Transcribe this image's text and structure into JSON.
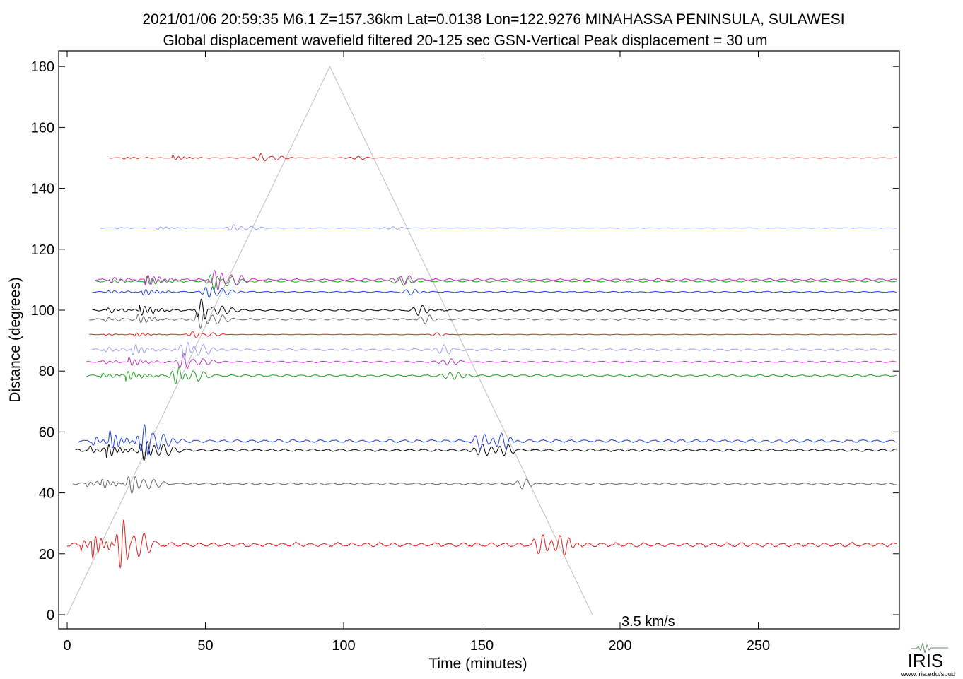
{
  "chart_data": {
    "type": "line",
    "title": "2021/01/06  20:59:35  M6.1  Z=157.36km  Lat=0.0138 Lon=122.9276  MINAHASSA PENINSULA, SULAWESI",
    "subtitle": "Global displacement wavefield     filtered 20-125 sec    GSN-Vertical    Peak displacement =  30 um",
    "xlabel": "Time (minutes)",
    "ylabel": "Distance (degrees)",
    "xlim": [
      -3,
      300
    ],
    "ylim": [
      -5,
      185
    ],
    "xticks": [
      0,
      50,
      100,
      150,
      200,
      250
    ],
    "yticks": [
      0,
      20,
      40,
      60,
      80,
      100,
      120,
      140,
      160,
      180
    ],
    "grid": false,
    "legend": "none",
    "reference_line": {
      "label": "3.5 km/s",
      "label_color": "#7f8a88",
      "color": "#c8c8c8",
      "x": [
        0,
        95,
        190
      ],
      "y": [
        0,
        180,
        0
      ]
    },
    "series": [
      {
        "distance": 23.0,
        "color": "#e02020",
        "p_arrival": 5,
        "s_arrival": 9,
        "surface_arrival": 20,
        "amplitude": 3.5,
        "late_x": [
          172,
          180
        ]
      },
      {
        "distance": 43.0,
        "color": "#666666",
        "p_arrival": 7,
        "s_arrival": 12,
        "surface_arrival": 23,
        "amplitude": 1.6,
        "late_x": [
          165
        ]
      },
      {
        "distance": 54.0,
        "color": "#000000",
        "p_arrival": 8,
        "s_arrival": 14,
        "surface_arrival": 28,
        "amplitude": 2.0,
        "late_x": [
          150,
          158
        ]
      },
      {
        "distance": 57.0,
        "color": "#2040e0",
        "p_arrival": 9,
        "s_arrival": 15,
        "surface_arrival": 28,
        "amplitude": 2.4,
        "late_x": [
          150,
          158
        ]
      },
      {
        "distance": 78.5,
        "color": "#20a020",
        "p_arrival": 12,
        "s_arrival": 21,
        "surface_arrival": 40,
        "amplitude": 1.6,
        "late_x": [
          140
        ]
      },
      {
        "distance": 83.0,
        "color": "#c030c0",
        "p_arrival": 12,
        "s_arrival": 22,
        "surface_arrival": 42,
        "amplitude": 1.2,
        "late_x": [
          138
        ]
      },
      {
        "distance": 87.0,
        "color": "#9aa0f0",
        "p_arrival": 13,
        "s_arrival": 23,
        "surface_arrival": 43,
        "amplitude": 1.6,
        "late_x": [
          136
        ]
      },
      {
        "distance": 92.0,
        "color": "#e02020",
        "p_arrival": 13,
        "s_arrival": 24,
        "surface_arrival": 46,
        "amplitude": 0.5,
        "late_x": [
          134
        ]
      },
      {
        "distance": 97.0,
        "color": "#666666",
        "p_arrival": 13,
        "s_arrival": 25,
        "surface_arrival": 48,
        "amplitude": 1.4,
        "late_x": [
          130
        ]
      },
      {
        "distance": 100.0,
        "color": "#000000",
        "p_arrival": 14,
        "s_arrival": 26,
        "surface_arrival": 49,
        "amplitude": 1.6,
        "late_x": [
          128
        ]
      },
      {
        "distance": 106.0,
        "color": "#2040e0",
        "p_arrival": 14,
        "s_arrival": 27,
        "surface_arrival": 51,
        "amplitude": 1.0,
        "late_x": [
          125
        ]
      },
      {
        "distance": 109.5,
        "color": "#20a020",
        "p_arrival": 15,
        "s_arrival": 28,
        "surface_arrival": 53,
        "amplitude": 1.4,
        "late_x": [
          122
        ]
      },
      {
        "distance": 110.0,
        "color": "#c030c0",
        "p_arrival": 15,
        "s_arrival": 28,
        "surface_arrival": 54,
        "amplitude": 1.6,
        "late_x": [
          122
        ]
      },
      {
        "distance": 127.0,
        "color": "#9aa0f0",
        "p_arrival": 17,
        "s_arrival": 32,
        "surface_arrival": 60,
        "amplitude": 0.5,
        "late_x": [
          118
        ]
      },
      {
        "distance": 150.0,
        "color": "#e02020",
        "p_arrival": 20,
        "s_arrival": 38,
        "surface_arrival": 70,
        "amplitude": 0.6,
        "late_x": [
          105
        ]
      }
    ]
  },
  "logo": {
    "name": "IRIS",
    "url": "www.iris.edu/spud",
    "icon": "seismogram-icon"
  }
}
